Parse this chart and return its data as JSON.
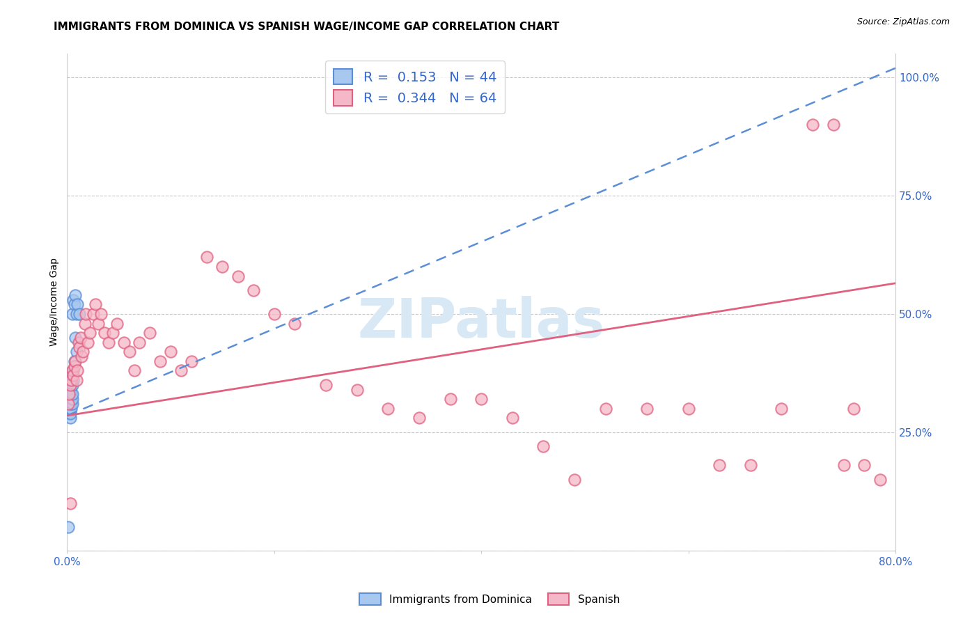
{
  "title": "IMMIGRANTS FROM DOMINICA VS SPANISH WAGE/INCOME GAP CORRELATION CHART",
  "source": "Source: ZipAtlas.com",
  "ylabel": "Wage/Income Gap",
  "xlim": [
    0.0,
    0.8
  ],
  "ylim": [
    0.0,
    1.05
  ],
  "xticks": [
    0.0,
    0.2,
    0.4,
    0.6,
    0.8
  ],
  "xticklabels": [
    "0.0%",
    "",
    "",
    "",
    "80.0%"
  ],
  "yticks": [
    0.0,
    0.25,
    0.5,
    0.75,
    1.0
  ],
  "yticklabels": [
    "",
    "25.0%",
    "50.0%",
    "75.0%",
    "100.0%"
  ],
  "blue_R": 0.153,
  "blue_N": 44,
  "pink_R": 0.344,
  "pink_N": 64,
  "blue_label": "Immigrants from Dominica",
  "pink_label": "Spanish",
  "blue_scatter_color": "#A8C8F0",
  "blue_scatter_edge": "#5B8ED6",
  "pink_scatter_color": "#F5B8C8",
  "pink_scatter_edge": "#E06080",
  "blue_line_color": "#5B8ED6",
  "pink_line_color": "#E06080",
  "grid_color": "#C8C8C8",
  "background_color": "#FFFFFF",
  "watermark_color": "#D8E8F5",
  "title_fontsize": 11,
  "axis_tick_fontsize": 11,
  "ylabel_fontsize": 10,
  "blue_trend_x0": 0.0,
  "blue_trend_y0": 0.285,
  "blue_trend_x1": 0.8,
  "blue_trend_y1": 1.02,
  "pink_trend_x0": 0.0,
  "pink_trend_y0": 0.285,
  "pink_trend_x1": 0.8,
  "pink_trend_y1": 0.565,
  "blue_x": [
    0.001,
    0.001,
    0.001,
    0.001,
    0.002,
    0.002,
    0.002,
    0.002,
    0.002,
    0.002,
    0.002,
    0.002,
    0.003,
    0.003,
    0.003,
    0.003,
    0.003,
    0.003,
    0.003,
    0.003,
    0.003,
    0.004,
    0.004,
    0.004,
    0.004,
    0.004,
    0.004,
    0.005,
    0.005,
    0.005,
    0.005,
    0.005,
    0.006,
    0.006,
    0.006,
    0.007,
    0.007,
    0.008,
    0.008,
    0.009,
    0.009,
    0.01,
    0.012,
    0.001
  ],
  "blue_y": [
    0.3,
    0.32,
    0.31,
    0.33,
    0.29,
    0.3,
    0.31,
    0.32,
    0.33,
    0.34,
    0.35,
    0.36,
    0.28,
    0.29,
    0.3,
    0.31,
    0.32,
    0.33,
    0.34,
    0.35,
    0.36,
    0.3,
    0.31,
    0.32,
    0.33,
    0.36,
    0.37,
    0.31,
    0.32,
    0.33,
    0.35,
    0.5,
    0.36,
    0.38,
    0.53,
    0.4,
    0.52,
    0.45,
    0.54,
    0.42,
    0.5,
    0.52,
    0.5,
    0.05
  ],
  "pink_x": [
    0.001,
    0.002,
    0.003,
    0.004,
    0.005,
    0.006,
    0.007,
    0.008,
    0.009,
    0.01,
    0.011,
    0.012,
    0.013,
    0.014,
    0.015,
    0.017,
    0.018,
    0.02,
    0.022,
    0.025,
    0.027,
    0.03,
    0.033,
    0.036,
    0.04,
    0.044,
    0.048,
    0.055,
    0.06,
    0.065,
    0.07,
    0.08,
    0.09,
    0.1,
    0.11,
    0.12,
    0.135,
    0.15,
    0.165,
    0.18,
    0.2,
    0.22,
    0.25,
    0.28,
    0.31,
    0.34,
    0.37,
    0.4,
    0.43,
    0.46,
    0.49,
    0.52,
    0.56,
    0.6,
    0.63,
    0.66,
    0.69,
    0.72,
    0.74,
    0.75,
    0.76,
    0.77,
    0.785,
    0.003
  ],
  "pink_y": [
    0.31,
    0.33,
    0.35,
    0.36,
    0.38,
    0.37,
    0.39,
    0.4,
    0.36,
    0.38,
    0.44,
    0.43,
    0.45,
    0.41,
    0.42,
    0.48,
    0.5,
    0.44,
    0.46,
    0.5,
    0.52,
    0.48,
    0.5,
    0.46,
    0.44,
    0.46,
    0.48,
    0.44,
    0.42,
    0.38,
    0.44,
    0.46,
    0.4,
    0.42,
    0.38,
    0.4,
    0.62,
    0.6,
    0.58,
    0.55,
    0.5,
    0.48,
    0.35,
    0.34,
    0.3,
    0.28,
    0.32,
    0.32,
    0.28,
    0.22,
    0.15,
    0.3,
    0.3,
    0.3,
    0.18,
    0.18,
    0.3,
    0.9,
    0.9,
    0.18,
    0.3,
    0.18,
    0.15,
    0.1
  ]
}
